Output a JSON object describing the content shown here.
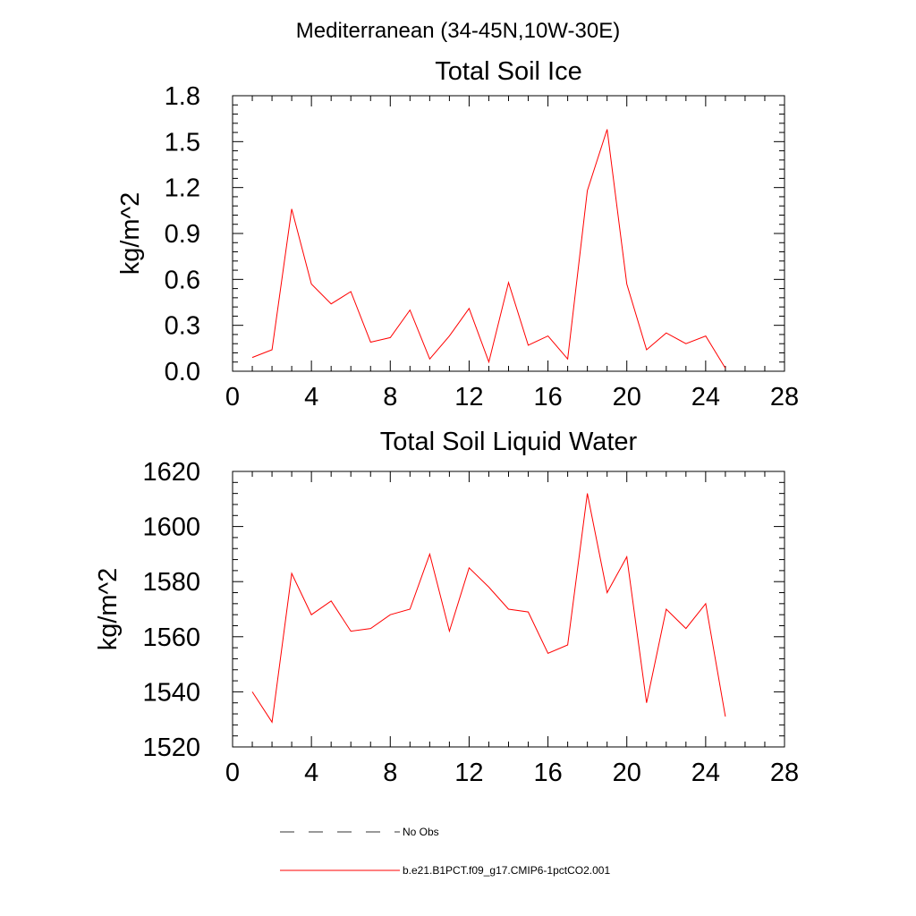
{
  "figure": {
    "suptitle": "Mediterranean (34-45N,10W-30E)"
  },
  "colors": {
    "model_line": "#ff0000",
    "obs_line": "#000000"
  },
  "legend": {
    "items": [
      {
        "label": "No Obs",
        "style": "dashed",
        "color": "#000000"
      },
      {
        "label": "b.e21.B1PCT.f09_g17.CMIP6-1pctCO2.001",
        "style": "solid",
        "color": "#ff0000"
      }
    ]
  },
  "chart_data": [
    {
      "type": "line",
      "title": "Total Soil Ice",
      "xlabel": "",
      "ylabel": "kg/m^2",
      "xlim": [
        0,
        28
      ],
      "ylim": [
        0.0,
        1.8
      ],
      "xticks": [
        0,
        4,
        8,
        12,
        16,
        20,
        24,
        28
      ],
      "xtick_labels": [
        "0",
        "4",
        "8",
        "12",
        "16",
        "20",
        "24",
        "28"
      ],
      "yticks": [
        0.0,
        0.3,
        0.6,
        0.9,
        1.2,
        1.5,
        1.8
      ],
      "ytick_labels": [
        "0.0",
        "0.3",
        "0.6",
        "0.9",
        "1.2",
        "1.5",
        "1.8"
      ],
      "grid": false,
      "series": [
        {
          "color": "#ff0000",
          "x": [
            1,
            2,
            3,
            4,
            5,
            6,
            7,
            8,
            9,
            10,
            11,
            12,
            13,
            14,
            15,
            16,
            17,
            18,
            19,
            20,
            21,
            22,
            23,
            24,
            25
          ],
          "y": [
            0.09,
            0.14,
            1.06,
            0.57,
            0.44,
            0.52,
            0.19,
            0.22,
            0.4,
            0.08,
            0.23,
            0.41,
            0.06,
            0.58,
            0.17,
            0.23,
            0.08,
            1.18,
            1.58,
            0.57,
            0.14,
            0.25,
            0.18,
            0.23,
            0.02
          ]
        }
      ]
    },
    {
      "type": "line",
      "title": "Total Soil Liquid Water",
      "xlabel": "",
      "ylabel": "kg/m^2",
      "xlim": [
        0,
        28
      ],
      "ylim": [
        1520,
        1620
      ],
      "xticks": [
        0,
        4,
        8,
        12,
        16,
        20,
        24,
        28
      ],
      "xtick_labels": [
        "0",
        "4",
        "8",
        "12",
        "16",
        "20",
        "24",
        "28"
      ],
      "yticks": [
        1520,
        1540,
        1560,
        1580,
        1600,
        1620
      ],
      "ytick_labels": [
        "1520",
        "1540",
        "1560",
        "1580",
        "1600",
        "1620"
      ],
      "grid": false,
      "series": [
        {
          "color": "#ff0000",
          "x": [
            1,
            2,
            3,
            4,
            5,
            6,
            7,
            8,
            9,
            10,
            11,
            12,
            13,
            14,
            15,
            16,
            17,
            18,
            19,
            20,
            21,
            22,
            23,
            24,
            25
          ],
          "y": [
            1540,
            1529,
            1583,
            1568,
            1573,
            1562,
            1563,
            1568,
            1570,
            1590,
            1562,
            1585,
            1578,
            1570,
            1569,
            1554,
            1557,
            1612,
            1576,
            1589,
            1536,
            1570,
            1563,
            1572,
            1531
          ]
        }
      ]
    }
  ]
}
